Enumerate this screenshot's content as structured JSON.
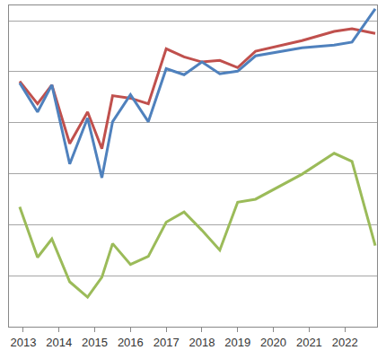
{
  "chart_data": {
    "type": "line",
    "x": [
      2012.9,
      2013.4,
      2013.8,
      2014.3,
      2014.8,
      2015.2,
      2015.5,
      2016.0,
      2016.5,
      2017.0,
      2017.5,
      2018.0,
      2018.5,
      2019.0,
      2019.5,
      2020.8,
      2021.7,
      2022.2,
      2022.85
    ],
    "series": [
      {
        "color": "#c0504d",
        "values": [
          4.81,
          4.37,
          4.74,
          3.59,
          4.21,
          3.49,
          4.53,
          4.48,
          4.37,
          5.45,
          5.29,
          5.19,
          5.22,
          5.08,
          5.4,
          5.61,
          5.79,
          5.84,
          5.75
        ]
      },
      {
        "color": "#4f81bd",
        "values": [
          4.78,
          4.21,
          4.74,
          3.19,
          4.09,
          2.92,
          4.02,
          4.55,
          4.02,
          5.06,
          4.94,
          5.19,
          4.96,
          5.01,
          5.31,
          5.47,
          5.52,
          5.58,
          6.23
        ]
      },
      {
        "color": "#9bbb59",
        "values": [
          2.35,
          1.36,
          1.72,
          0.88,
          0.58,
          0.97,
          1.63,
          1.22,
          1.38,
          2.05,
          2.25,
          1.89,
          1.5,
          2.44,
          2.5,
          2.99,
          3.4,
          3.24,
          1.59
        ]
      }
    ],
    "xlim": [
      2012.6,
      2022.9
    ],
    "xticks": [
      2013,
      2014,
      2015,
      2016,
      2017,
      2018,
      2019,
      2020,
      2021,
      2022
    ],
    "ylim": [
      0,
      6.3
    ],
    "yticks": [
      0,
      1,
      2,
      3,
      4,
      5,
      6
    ],
    "grid": true,
    "tick_labels": "x"
  }
}
